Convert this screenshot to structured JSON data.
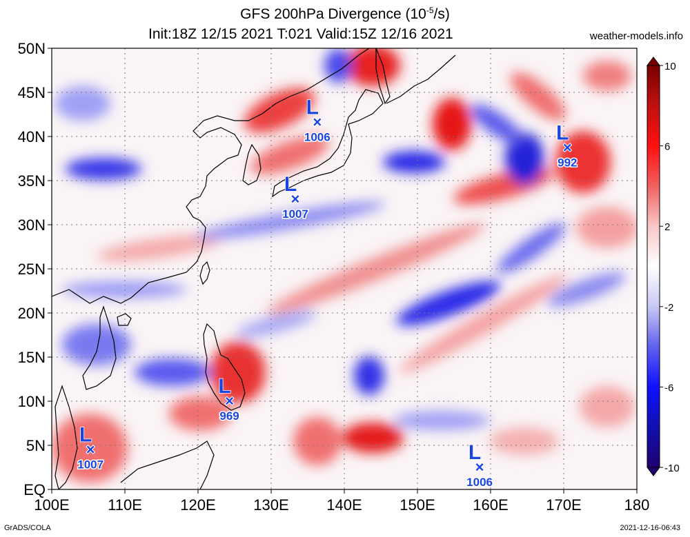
{
  "header": {
    "title_line1": "GFS 200hPa Divergence (10",
    "title_exp": "-5",
    "title_unit": "/s)",
    "title_line2": "Init:18Z 12/15 2021 T:021 Valid:15Z 12/16 2021",
    "site": "weather-models.info"
  },
  "footer": {
    "source": "GrADS/COLA",
    "timestamp": "2021-12-16-06:43"
  },
  "map": {
    "lon_ticks": [
      "100E",
      "110E",
      "120E",
      "130E",
      "140E",
      "150E",
      "160E",
      "170E",
      "180"
    ],
    "lat_ticks": [
      "50N",
      "45N",
      "40N",
      "35N",
      "30N",
      "25N",
      "20N",
      "15N",
      "10N",
      "5N",
      "EQ"
    ],
    "lon_values": [
      100,
      110,
      120,
      130,
      140,
      150,
      160,
      170,
      180
    ],
    "lat_values": [
      50,
      45,
      40,
      35,
      30,
      25,
      20,
      15,
      10,
      5,
      0
    ],
    "extent": {
      "lon_min": 100,
      "lon_max": 180,
      "lat_min": 0,
      "lat_max": 50
    },
    "grid": "dotted",
    "lows": [
      {
        "symbol": "L",
        "pressure": "1006",
        "lon": 136.3,
        "lat": 41.6
      },
      {
        "symbol": "L",
        "pressure": "1007",
        "lon": 133.3,
        "lat": 32.9
      },
      {
        "symbol": "L",
        "pressure": "992",
        "lon": 170.5,
        "lat": 38.7
      },
      {
        "symbol": "L",
        "pressure": "969",
        "lon": 124.3,
        "lat": 10.0
      },
      {
        "symbol": "L",
        "pressure": "1007",
        "lon": 105.3,
        "lat": 4.5
      },
      {
        "symbol": "L",
        "pressure": "1006",
        "lon": 158.5,
        "lat": 2.5
      }
    ],
    "colors": {
      "positive": "#e8191c",
      "negative": "#1528e0",
      "low_label": "#1a44e0"
    }
  },
  "colorbar": {
    "labels": [
      "10",
      "6",
      "2",
      "-2",
      "-6",
      "-10"
    ],
    "values": [
      10,
      6,
      2,
      -2,
      -6,
      -10
    ]
  }
}
